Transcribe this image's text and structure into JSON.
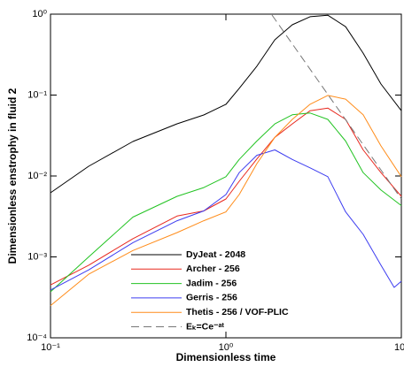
{
  "chart_data": {
    "type": "line",
    "xlabel": "Dimensionless time",
    "ylabel": "Dimensionless enstrophy in fluid 2",
    "xscale": "log",
    "yscale": "log",
    "xlim": [
      0.1,
      10
    ],
    "ylim": [
      0.0001,
      1
    ],
    "xticks": [
      {
        "value": 0.1,
        "label": "10⁻¹"
      },
      {
        "value": 1,
        "label": "10⁰"
      },
      {
        "value": 10,
        "label": "10¹"
      }
    ],
    "yticks": [
      {
        "value": 0.0001,
        "label": "10⁻⁴"
      },
      {
        "value": 0.001,
        "label": "10⁻³"
      },
      {
        "value": 0.01,
        "label": "10⁻²"
      },
      {
        "value": 0.1,
        "label": "10⁻¹"
      },
      {
        "value": 1,
        "label": "10⁰"
      }
    ],
    "legend": "bottom-center",
    "series": [
      {
        "name": "DyJeat - 2048",
        "color": "#000000",
        "x": [
          0.1,
          0.165,
          0.295,
          0.527,
          0.748,
          1,
          1.19,
          1.5,
          1.9,
          2.39,
          3.02,
          3.81,
          4.81,
          6.06,
          7.65,
          10
        ],
        "values": [
          0.0062,
          0.0132,
          0.0267,
          0.0441,
          0.0568,
          0.0768,
          0.121,
          0.227,
          0.482,
          0.74,
          0.93,
          0.97,
          0.7,
          0.33,
          0.137,
          0.064
        ]
      },
      {
        "name": "Archer - 256",
        "color": "#e8281e",
        "x": [
          0.1,
          0.165,
          0.295,
          0.527,
          0.748,
          1,
          1.19,
          1.5,
          1.9,
          2.39,
          3.02,
          3.81,
          4.81,
          6.06,
          7.65,
          10
        ],
        "values": [
          0.00045,
          0.00079,
          0.00168,
          0.0032,
          0.0037,
          0.0052,
          0.0086,
          0.0162,
          0.03,
          0.044,
          0.064,
          0.069,
          0.05,
          0.021,
          0.011,
          0.0056
        ]
      },
      {
        "name": "Jadim - 256",
        "color": "#22c322",
        "x": [
          0.1,
          0.165,
          0.295,
          0.527,
          0.748,
          1,
          1.19,
          1.5,
          1.9,
          2.39,
          3.02,
          3.81,
          4.81,
          6.06,
          7.65,
          10
        ],
        "values": [
          0.00037,
          0.001,
          0.0031,
          0.0056,
          0.0072,
          0.0098,
          0.016,
          0.027,
          0.044,
          0.057,
          0.06,
          0.05,
          0.027,
          0.011,
          0.0067,
          0.0043
        ]
      },
      {
        "name": "Gerris - 256",
        "color": "#3c3cf0",
        "x": [
          0.1,
          0.165,
          0.295,
          0.527,
          0.748,
          1,
          1.19,
          1.5,
          1.9,
          2.39,
          3.02,
          3.81,
          4.81,
          6.06,
          7.65,
          9.1,
          10
        ],
        "values": [
          0.00039,
          0.00069,
          0.0015,
          0.0028,
          0.0037,
          0.0059,
          0.011,
          0.018,
          0.021,
          0.016,
          0.0126,
          0.0098,
          0.0036,
          0.0019,
          0.00079,
          0.00042,
          0.0005
        ]
      },
      {
        "name": "Thetis - 256 / VOF-PLIC",
        "color": "#ff8c1a",
        "x": [
          0.1,
          0.165,
          0.295,
          0.527,
          0.748,
          1,
          1.19,
          1.5,
          1.9,
          2.39,
          3.02,
          3.81,
          4.81,
          6.06,
          7.65,
          10
        ],
        "values": [
          0.00025,
          0.00061,
          0.0012,
          0.002,
          0.0028,
          0.0036,
          0.0059,
          0.0142,
          0.03,
          0.05,
          0.077,
          0.099,
          0.089,
          0.057,
          0.0235,
          0.0098
        ]
      },
      {
        "name": "Eₖ=Ce⁻ᵃᵗ",
        "color": "#777777",
        "dashed": true,
        "x": [
          1.83,
          10
        ],
        "values": [
          0.975,
          0.0052
        ]
      }
    ]
  }
}
